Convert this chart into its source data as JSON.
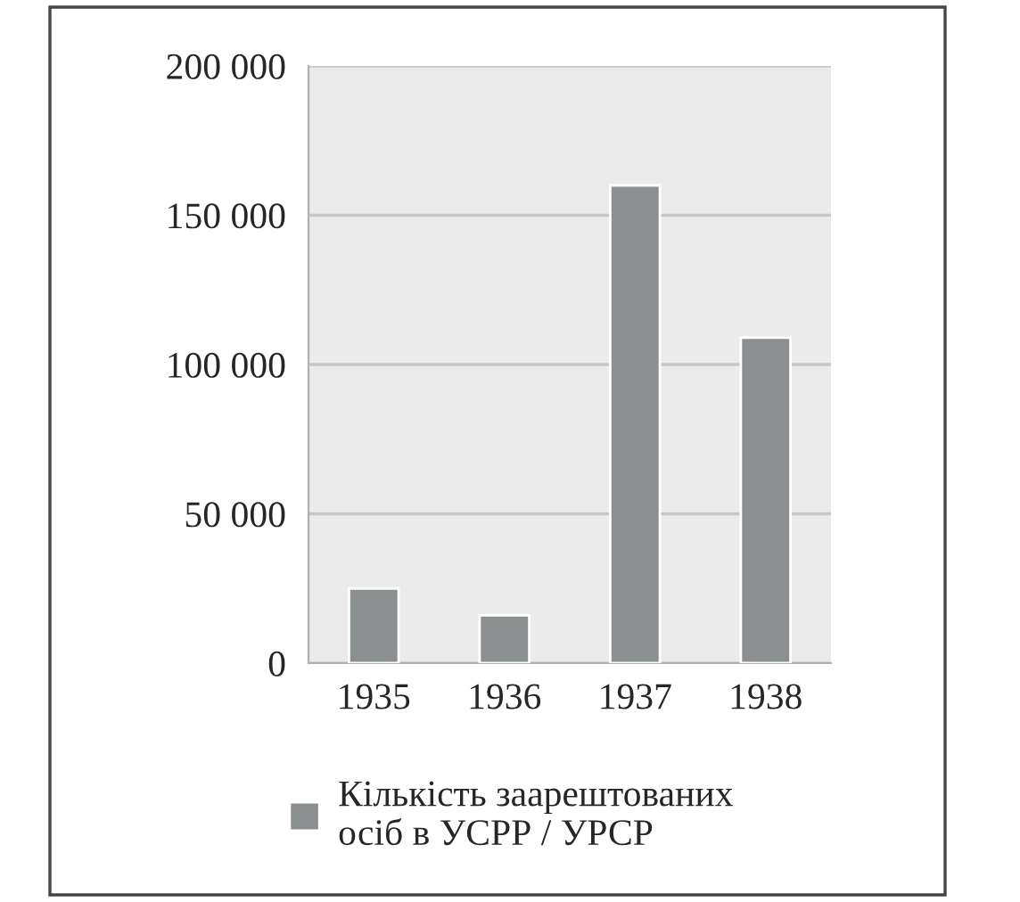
{
  "chart_data": {
    "type": "bar",
    "categories": [
      "1935",
      "1936",
      "1937",
      "1938"
    ],
    "series": [
      {
        "name": "Кількість заарештованих осіб в УСРР / УРСР",
        "color": "#8c8f90",
        "values": [
          25000,
          16000,
          160000,
          109000
        ]
      }
    ],
    "ylim": [
      0,
      200000
    ],
    "yticks": [
      {
        "value": 0,
        "label": "0"
      },
      {
        "value": 50000,
        "label": "50 000"
      },
      {
        "value": 100000,
        "label": "100 000"
      },
      {
        "value": 150000,
        "label": "150 000"
      },
      {
        "value": 200000,
        "label": "200 000"
      }
    ],
    "grid": "y",
    "legend": "bottom"
  }
}
